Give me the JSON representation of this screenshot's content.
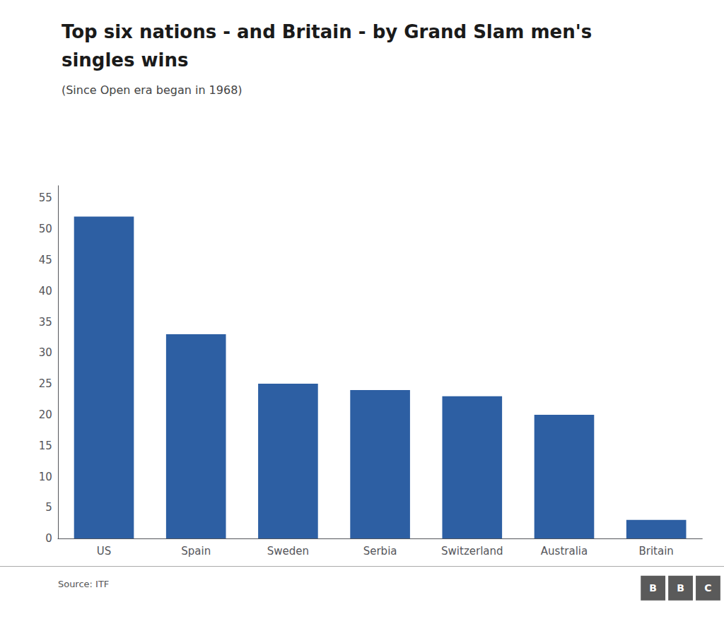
{
  "chart_data": {
    "type": "bar",
    "title": "Top six nations - and Britain - by Grand Slam men's\nsingles wins",
    "subtitle": "(Since Open era began in 1968)",
    "source": "Source: ITF",
    "logo": {
      "letters": [
        "B",
        "B",
        "C"
      ],
      "color": "#5a5a5a"
    },
    "categories": [
      "US",
      "Spain",
      "Sweden",
      "Serbia",
      "Switzerland",
      "Australia",
      "Britain"
    ],
    "values": [
      52,
      33,
      25,
      24,
      23,
      20,
      3
    ],
    "color": "#2d5fa3",
    "ylim": [
      0,
      57
    ],
    "yticks": [
      0,
      5,
      10,
      15,
      20,
      25,
      30,
      35,
      40,
      45,
      50,
      55
    ],
    "grid": false
  }
}
